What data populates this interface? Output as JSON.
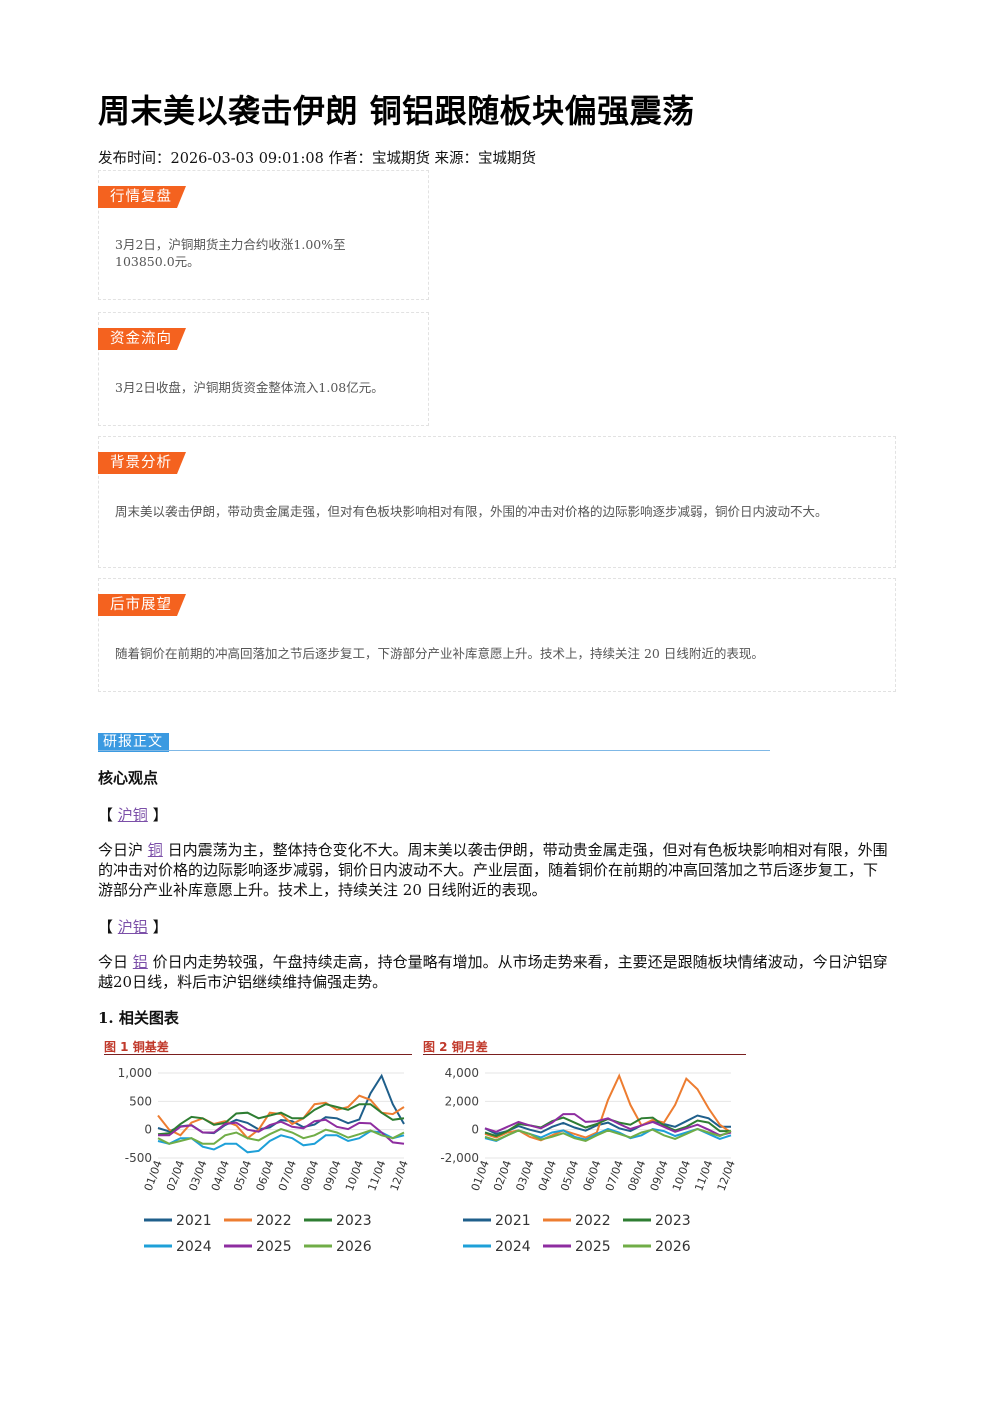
{
  "title": "周末美以袭击伊朗 铜铝跟随板块偏强震荡",
  "meta": "发布时间：2026-03-03 09:01:08 作者：宝城期货 来源：宝城期货",
  "boxes": {
    "review": {
      "tag": "行情复盘",
      "text": "3月2日，沪铜期货主力合约收涨1.00%至103850.0元。"
    },
    "funds": {
      "tag": "资金流向",
      "text": "3月2日收盘，沪铜期货资金整体流入1.08亿元。"
    },
    "background": {
      "tag": "背景分析",
      "text": "周末美以袭击伊朗，带动贵金属走强，但对有色板块影响相对有限，外围的冲击对价格的边际影响逐步减弱，铜价日内波动不大。"
    },
    "outlook": {
      "tag": "后市展望",
      "text": "随着铜价在前期的冲高回落加之节后逐步复工，下游部分产业补库意愿上升。技术上，持续关注 20 日线附近的表现。"
    }
  },
  "report": {
    "section_label": "研报正文",
    "core_heading": "核心观点",
    "copper": {
      "bracket_open": "【",
      "link": "沪铜",
      "bracket_close": "】",
      "para_prefix": "今日沪",
      "para_link": "铜",
      "para_rest": "日内震荡为主，整体持仓变化不大。周末美以袭击伊朗，带动贵金属走强，但对有色板块影响相对有限，外围的冲击对价格的边际影响逐步减弱，铜价日内波动不大。产业层面，随着铜价在前期的冲高回落加之节后逐步复工，下游部分产业补库意愿上升。技术上，持续关注 20 日线附近的表现。"
    },
    "aluminum": {
      "bracket_open": "【",
      "link": "沪铝",
      "bracket_close": "】",
      "para_prefix": "今日",
      "para_link": "铝",
      "para_rest": "价日内走势较强，午盘持续走高，持仓量略有增加。从市场走势来看，主要还是跟随板块情绪波动，今日沪铝穿越20日线，料后市沪铝继续维持偏强走势。"
    },
    "charts_heading": "1. 相关图表"
  },
  "colors": {
    "2021": "#1f5f8b",
    "2022": "#ed7d31",
    "2023": "#2e7d32",
    "2024": "#1ea0d8",
    "2025": "#8e2da0",
    "2026": "#70ad47"
  },
  "chart_data": [
    {
      "type": "line",
      "title": "图 1  铜基差",
      "x": [
        "01/04",
        "02/04",
        "03/04",
        "04/04",
        "05/04",
        "06/04",
        "07/04",
        "08/04",
        "09/04",
        "10/04",
        "11/04",
        "12/04"
      ],
      "yticks": [
        "1,000",
        "500",
        "0",
        "-500"
      ],
      "ylim": [
        -500,
        1000
      ],
      "legend": [
        "2021",
        "2022",
        "2023",
        "2024",
        "2025",
        "2026"
      ],
      "series": [
        {
          "name": "2021",
          "values": [
            30,
            60,
            -50,
            80,
            120,
            40,
            150,
            90,
            200,
            180,
            950,
            100
          ]
        },
        {
          "name": "2022",
          "values": [
            250,
            -100,
            200,
            150,
            -150,
            300,
            100,
            450,
            350,
            600,
            300,
            400
          ]
        },
        {
          "name": "2023",
          "values": [
            -80,
            100,
            200,
            120,
            300,
            250,
            200,
            350,
            400,
            450,
            300,
            200
          ]
        },
        {
          "name": "2024",
          "values": [
            -200,
            -150,
            -300,
            -250,
            -400,
            -200,
            -150,
            -250,
            -100,
            -150,
            -50,
            -100
          ]
        },
        {
          "name": "2025",
          "values": [
            -100,
            50,
            -50,
            100,
            0,
            80,
            50,
            150,
            50,
            120,
            -50,
            -250
          ]
        },
        {
          "name": "2026",
          "values": [
            -150,
            -200,
            -250,
            -100,
            -150,
            -80,
            -50,
            -100,
            -50,
            -80,
            -100,
            -50
          ]
        }
      ]
    },
    {
      "type": "line",
      "title": "图 2  铜月差",
      "x": [
        "01/04",
        "02/04",
        "03/04",
        "04/04",
        "05/04",
        "06/04",
        "07/04",
        "08/04",
        "09/04",
        "10/04",
        "11/04",
        "12/04"
      ],
      "yticks": [
        "4,000",
        "2,000",
        "0",
        "-2,000"
      ],
      "ylim": [
        -2000,
        4000
      ],
      "legend": [
        "2021",
        "2022",
        "2023",
        "2024",
        "2025",
        "2026"
      ],
      "series": [
        {
          "name": "2021",
          "values": [
            100,
            -100,
            0,
            200,
            150,
            300,
            100,
            300,
            400,
            600,
            800,
            200
          ]
        },
        {
          "name": "2022",
          "values": [
            -300,
            -200,
            -500,
            -400,
            -300,
            -200,
            3800,
            300,
            500,
            3600,
            1500,
            -200
          ]
        },
        {
          "name": "2023",
          "values": [
            -200,
            -100,
            300,
            600,
            500,
            400,
            500,
            800,
            300,
            200,
            500,
            -100
          ]
        },
        {
          "name": "2024",
          "values": [
            -600,
            -400,
            -300,
            -200,
            -500,
            -300,
            -200,
            -400,
            -100,
            -200,
            -300,
            -400
          ]
        },
        {
          "name": "2025",
          "values": [
            100,
            200,
            300,
            500,
            1100,
            600,
            400,
            300,
            200,
            100,
            0,
            -200
          ]
        },
        {
          "name": "2026",
          "values": [
            -500,
            -400,
            -300,
            -500,
            -600,
            -400,
            -300,
            -200,
            -400,
            -300,
            -200,
            -100
          ]
        }
      ]
    }
  ]
}
